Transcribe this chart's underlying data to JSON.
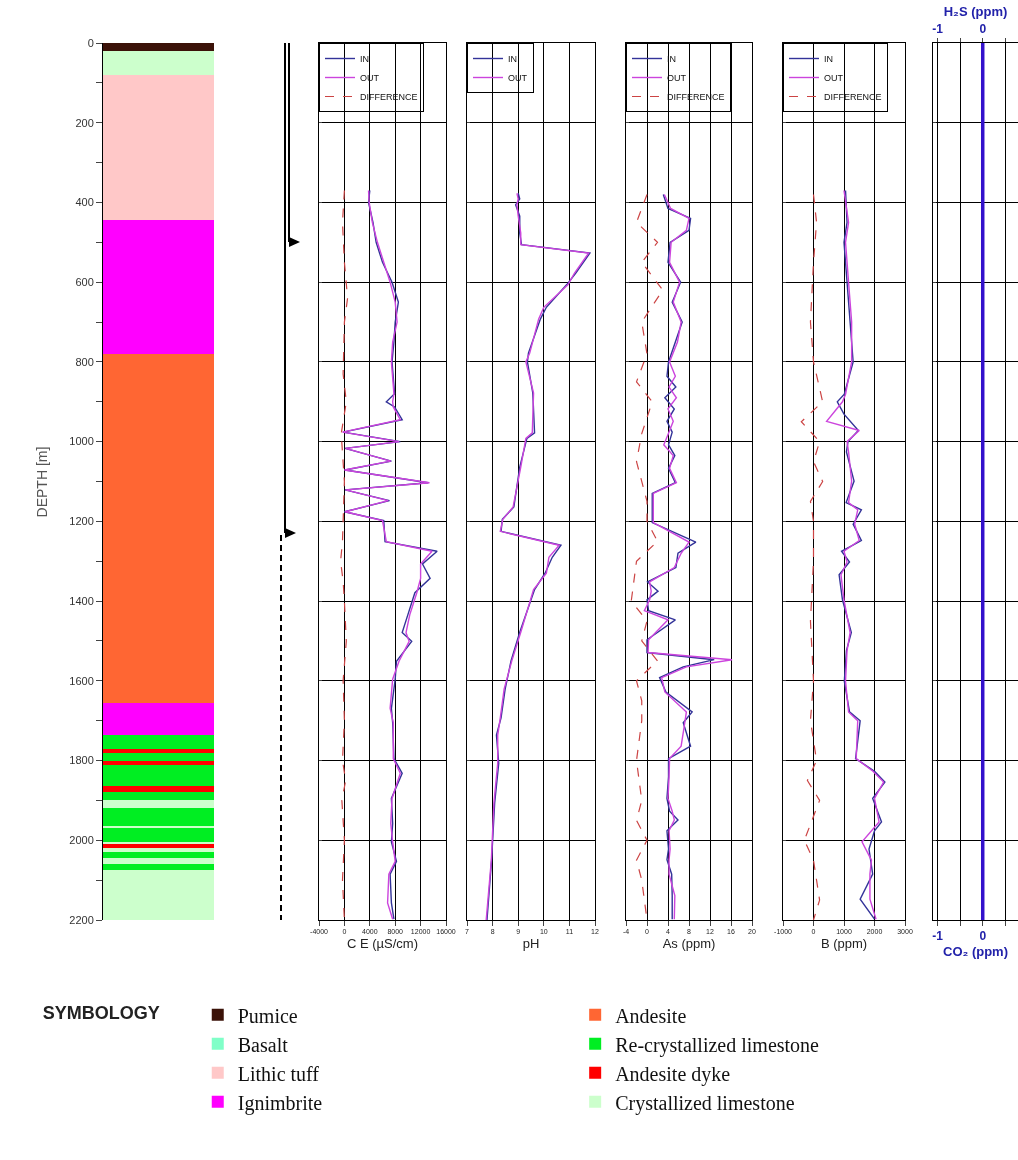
{
  "chart_data": [
    {
      "type": "bar",
      "stacked": true,
      "categories": [
        null
      ],
      "ylabel": "DEPTH [m]",
      "ylim": [
        2200,
        0
      ],
      "yticks": [
        0,
        {
          "value": 100,
          "label": null
        },
        200,
        {
          "value": 300,
          "label": null
        },
        400,
        {
          "value": 500,
          "label": null
        },
        600,
        {
          "value": 700,
          "label": null
        },
        800,
        {
          "value": 900,
          "label": null
        },
        1000,
        {
          "value": 1100,
          "label": null
        },
        1200,
        {
          "value": 1300,
          "label": null
        },
        1400,
        {
          "value": 1500,
          "label": null
        },
        1600,
        {
          "value": 1700,
          "label": null
        },
        1800,
        {
          "value": 1900,
          "label": null
        },
        2000,
        {
          "value": 2100,
          "label": null
        },
        2200
      ],
      "tick_labels": "y",
      "legend": "bottom",
      "legend_title": "SYMBOLOGY",
      "series": [
        {
          "name": "Pumice",
          "color": "#3b1208",
          "values": [
            20
          ]
        },
        {
          "name": "Basalt",
          "color": "#80ffc8",
          "values": [
            null
          ]
        },
        {
          "color": "#ccffcc",
          "values": [
            60
          ]
        },
        {
          "name": "Lithic tuff",
          "color": "#ffc8c8",
          "values": [
            365
          ]
        },
        {
          "name": "Ignimbrite",
          "color": "#ff00ff",
          "values": [
            335
          ]
        },
        {
          "name": "Andesite",
          "color": "#ff6633",
          "values": [
            875
          ]
        },
        {
          "color": "#ff00ff",
          "values": [
            80
          ]
        },
        {
          "name": "Re-crystallized limestone",
          "color": "#00ee22",
          "values": [
            35
          ]
        },
        {
          "name": "Andesite dyke",
          "color": "#ff0000",
          "values": [
            10
          ]
        },
        {
          "color": "#00ee22",
          "values": [
            20
          ]
        },
        {
          "color": "#ff0000",
          "values": [
            10
          ]
        },
        {
          "color": "#00ee22",
          "values": [
            55
          ]
        },
        {
          "color": "#ff0000",
          "values": [
            15
          ]
        },
        {
          "color": "#00ee22",
          "values": [
            20
          ]
        },
        {
          "color": "#ccffcc",
          "values": [
            20
          ]
        },
        {
          "color": "#00ee22",
          "values": [
            45
          ]
        },
        {
          "color": "#ccffcc",
          "values": [
            5
          ]
        },
        {
          "color": "#00ee22",
          "values": [
            35
          ]
        },
        {
          "color": "#ccffcc",
          "values": [
            5
          ]
        },
        {
          "color": "#ff0000",
          "values": [
            10
          ]
        },
        {
          "color": "#ccffcc",
          "values": [
            10
          ]
        },
        {
          "color": "#00ee22",
          "values": [
            15
          ]
        },
        {
          "color": "#ccffcc",
          "values": [
            15
          ]
        },
        {
          "color": "#00ee22",
          "values": [
            15
          ]
        },
        {
          "name": "Crystallized limestone",
          "color": "#ccffcc",
          "values": [
            125
          ]
        }
      ]
    },
    {
      "type": "line",
      "orientation": "horizontal",
      "xlabel": "C E (µS/cm)",
      "xlim": [
        -4000,
        16000
      ],
      "xticks": [
        -4000,
        0,
        4000,
        8000,
        12000,
        16000
      ],
      "ylim": [
        2200,
        0
      ],
      "yticks": [
        0,
        200,
        400,
        600,
        800,
        1000,
        1200,
        1400,
        1600,
        1800,
        2000,
        2200
      ],
      "tick_labels": "x",
      "grid": true,
      "legend": "top",
      "series": [
        {
          "name": "IN",
          "color": "#333399",
          "x": [
            370,
            400,
            450,
            500,
            550,
            600,
            650,
            700,
            750,
            800,
            880,
            900,
            913,
            945,
            976,
            1000,
            1017,
            1049,
            1071,
            1103,
            1121,
            1148,
            1176,
            1198,
            1251,
            1275,
            1307,
            1343,
            1379,
            1434,
            1479,
            1501,
            1551,
            1596,
            1669,
            1705,
            1795,
            1832,
            1895,
            1958,
            2004,
            2053,
            2085,
            2157,
            2198
          ],
          "values": [
            4000,
            3800,
            4500,
            5000,
            6000,
            7500,
            8500,
            8000,
            7800,
            7500,
            7900,
            6600,
            7900,
            9100,
            -200,
            8800,
            100,
            7400,
            100,
            13200,
            100,
            7100,
            0,
            6200,
            6400,
            14600,
            12300,
            13500,
            11100,
            10000,
            9100,
            10600,
            8200,
            8000,
            7400,
            7600,
            7800,
            9100,
            7400,
            7600,
            7400,
            8200,
            7200,
            7400,
            7800
          ]
        },
        {
          "name": "OUT",
          "color": "#cc44dd",
          "x": [
            370,
            400,
            450,
            500,
            550,
            600,
            650,
            700,
            750,
            800,
            880,
            900,
            913,
            945,
            976,
            1000,
            1017,
            1049,
            1071,
            1103,
            1121,
            1148,
            1176,
            1198,
            1251,
            1275,
            1307,
            1343,
            1379,
            1434,
            1479,
            1501,
            1551,
            1596,
            1669,
            1705,
            1795,
            1832,
            1895,
            1958,
            2004,
            2053,
            2085,
            2157,
            2198
          ],
          "values": [
            3800,
            3900,
            4400,
            5200,
            6200,
            7200,
            8000,
            8300,
            7600,
            7400,
            7800,
            7600,
            7700,
            8800,
            -300,
            8600,
            200,
            7300,
            0,
            13400,
            200,
            6900,
            100,
            6000,
            6600,
            13800,
            12000,
            12000,
            11400,
            10300,
            9700,
            10200,
            8600,
            7600,
            7200,
            7700,
            7700,
            8800,
            7500,
            7300,
            7600,
            8000,
            7000,
            6800,
            7600
          ]
        },
        {
          "name": "DIFFERENCE",
          "color": "#cc4444",
          "line_style": "dashed",
          "x": [
            370,
            450,
            550,
            640,
            700,
            830,
            900,
            980,
            1100,
            1250,
            1300,
            1350,
            1400,
            1500,
            1600,
            1700,
            1800,
            1850,
            1900,
            2000,
            2100,
            2200
          ],
          "values": [
            0,
            -300,
            0,
            500,
            0,
            -200,
            300,
            -500,
            0,
            -300,
            -600,
            -200,
            0,
            300,
            -200,
            0,
            -300,
            200,
            -400,
            0,
            -300,
            0
          ]
        }
      ]
    },
    {
      "type": "line",
      "orientation": "horizontal",
      "xlabel": "pH",
      "xlim": [
        7,
        12
      ],
      "xticks": [
        7,
        8,
        9,
        10,
        11,
        12
      ],
      "ylim": [
        2200,
        0
      ],
      "yticks": [
        0,
        200,
        400,
        600,
        800,
        1000,
        1200,
        1400,
        1600,
        1800,
        2000,
        2200
      ],
      "tick_labels": "x",
      "grid": true,
      "legend": "top",
      "series": [
        {
          "name": "IN",
          "color": "#333399",
          "x": [
            377,
            391,
            406,
            434,
            477,
            506,
            527,
            577,
            606,
            663,
            692,
            778,
            800,
            878,
            978,
            992,
            1064,
            1164,
            1195,
            1225,
            1260,
            1290,
            1330,
            1371,
            1478,
            1550,
            1621,
            1693,
            1736,
            1807,
            1907,
            2050,
            2200
          ],
          "values": [
            9.0,
            9.06,
            8.9,
            9.06,
            9.06,
            9.13,
            11.8,
            11.25,
            10.9,
            10.1,
            9.87,
            9.4,
            9.36,
            9.57,
            9.64,
            9.34,
            9.06,
            8.83,
            8.38,
            8.33,
            10.67,
            10.33,
            10.05,
            9.64,
            9.06,
            8.72,
            8.49,
            8.33,
            8.15,
            8.24,
            8.08,
            7.96,
            7.78
          ]
        },
        {
          "name": "OUT",
          "color": "#cc44dd",
          "x": [
            377,
            391,
            406,
            434,
            477,
            506,
            527,
            577,
            606,
            663,
            692,
            778,
            800,
            878,
            978,
            992,
            1064,
            1164,
            1195,
            1225,
            1260,
            1290,
            1330,
            1371,
            1478,
            1550,
            1621,
            1693,
            1736,
            1807,
            1907,
            2050,
            2200
          ],
          "values": [
            8.95,
            9.0,
            8.95,
            9.0,
            9.1,
            9.1,
            11.75,
            11.2,
            10.95,
            10.0,
            9.8,
            9.45,
            9.3,
            9.6,
            9.55,
            9.3,
            9.1,
            8.8,
            8.4,
            8.3,
            10.6,
            10.2,
            10.1,
            9.6,
            9.1,
            8.75,
            8.45,
            8.3,
            8.2,
            8.2,
            8.05,
            7.95,
            7.75
          ]
        }
      ]
    },
    {
      "type": "line",
      "orientation": "horizontal",
      "xlabel": "As (ppm)",
      "xlim": [
        -4,
        20
      ],
      "xticks": [
        -4,
        0,
        4,
        8,
        12,
        16,
        20
      ],
      "ylim": [
        2200,
        0
      ],
      "yticks": [
        0,
        200,
        400,
        600,
        800,
        1000,
        1200,
        1400,
        1600,
        1800,
        2000,
        2200
      ],
      "tick_labels": "x",
      "grid": true,
      "legend": "top",
      "series": [
        {
          "name": "IN",
          "color": "#333399",
          "x": [
            380,
            415,
            440,
            470,
            500,
            550,
            600,
            650,
            700,
            750,
            800,
            836,
            863,
            890,
            918,
            949,
            976,
            1008,
            1035,
            1067,
            1103,
            1130,
            1203,
            1252,
            1280,
            1316,
            1352,
            1375,
            1397,
            1424,
            1447,
            1497,
            1529,
            1547,
            1565,
            1592,
            1628,
            1678,
            1705,
            1764,
            1795,
            1841,
            1895,
            1927,
            1949,
            1976,
            2022,
            2049,
            2085,
            2139,
            2198
          ],
          "values": [
            3.1,
            4,
            8.3,
            8,
            4.4,
            4,
            6.4,
            4.8,
            6.7,
            5.4,
            4.1,
            3.8,
            5.5,
            3.4,
            5.2,
            3.8,
            4.8,
            4.1,
            5.3,
            4.1,
            5.4,
            1,
            1,
            9.3,
            5.9,
            5.5,
            0.1,
            2.1,
            0,
            0.3,
            5.4,
            0,
            0,
            12.8,
            6.9,
            2.4,
            3.6,
            8.6,
            6.9,
            8.3,
            4.1,
            4.1,
            3.8,
            4.3,
            5.9,
            3.8,
            4.1,
            3.8,
            4.7,
            4.8,
            4.8
          ]
        },
        {
          "name": "OUT",
          "color": "#cc44dd",
          "x": [
            380,
            415,
            440,
            470,
            500,
            550,
            600,
            650,
            700,
            750,
            800,
            836,
            863,
            890,
            918,
            949,
            976,
            1008,
            1035,
            1067,
            1103,
            1130,
            1203,
            1252,
            1280,
            1316,
            1352,
            1375,
            1397,
            1424,
            1447,
            1497,
            1529,
            1547,
            1565,
            1592,
            1628,
            1678,
            1705,
            1764,
            1795,
            1841,
            1895,
            1927,
            1949,
            1976,
            2022,
            2049,
            2085,
            2139,
            2198
          ],
          "values": [
            3.3,
            4.5,
            8,
            7.5,
            4.6,
            4.3,
            6.2,
            5,
            6.5,
            5.8,
            4.3,
            5.4,
            4.2,
            5.6,
            4,
            5,
            4.2,
            3.2,
            5,
            4.3,
            5.6,
            1.2,
            1.2,
            8,
            6.5,
            5.2,
            0.5,
            0.8,
            0.5,
            -0.5,
            4,
            0.3,
            0.2,
            16.2,
            7.5,
            2.8,
            3.4,
            7.5,
            7.2,
            6.5,
            4.3,
            4.2,
            4,
            4.8,
            5.2,
            4.2,
            4.4,
            4.2,
            4.2,
            5.3,
            5.2
          ]
        },
        {
          "name": "DIFFERENCE",
          "color": "#cc4444",
          "line_style": "dashed",
          "x": [
            380,
            450,
            500,
            550,
            620,
            700,
            780,
            850,
            900,
            980,
            1050,
            1150,
            1200,
            1250,
            1300,
            1400,
            1450,
            1500,
            1550,
            1600,
            1650,
            1700,
            1800,
            1900,
            1950,
            2000,
            2050,
            2100,
            2200
          ],
          "values": [
            0,
            -2,
            2,
            -1,
            3,
            -1,
            0,
            -2,
            1,
            -1,
            -2,
            0,
            0,
            2,
            -2,
            -3,
            0,
            -1,
            2,
            -2,
            -1,
            -1,
            -2,
            -1,
            -2,
            0,
            -2,
            -1,
            0
          ]
        }
      ]
    },
    {
      "type": "line",
      "orientation": "horizontal",
      "xlabel": "B (ppm)",
      "xlim": [
        -1000,
        3000
      ],
      "xticks": [
        -1000,
        0,
        1000,
        2000,
        3000
      ],
      "ylim": [
        2200,
        0
      ],
      "yticks": [
        0,
        200,
        400,
        600,
        800,
        1000,
        1200,
        1400,
        1600,
        1800,
        2000,
        2200
      ],
      "tick_labels": "x",
      "grid": true,
      "legend": "top",
      "series": [
        {
          "name": "IN",
          "color": "#333399",
          "x": [
            370,
            450,
            500,
            600,
            700,
            800,
            881,
            900,
            931,
            972,
            1000,
            1026,
            1099,
            1153,
            1171,
            1207,
            1248,
            1275,
            1302,
            1334,
            1397,
            1479,
            1524,
            1601,
            1678,
            1700,
            1795,
            1827,
            1854,
            1895,
            1954,
            1976,
            2022,
            2085,
            2148,
            2198
          ],
          "values": [
            1050,
            1100,
            1000,
            1100,
            1200,
            1300,
            1010,
            780,
            1000,
            1470,
            1130,
            1080,
            1330,
            1070,
            1570,
            1300,
            1570,
            920,
            1180,
            840,
            950,
            1240,
            1080,
            1010,
            1180,
            1530,
            1380,
            2000,
            2340,
            1940,
            2230,
            2000,
            1820,
            1940,
            1530,
            2000
          ]
        },
        {
          "name": "OUT",
          "color": "#cc44dd",
          "x": [
            370,
            450,
            500,
            600,
            700,
            800,
            881,
            900,
            949,
            972,
            1000,
            1026,
            1099,
            1153,
            1171,
            1207,
            1248,
            1275,
            1302,
            1334,
            1397,
            1479,
            1524,
            1601,
            1678,
            1700,
            1795,
            1827,
            1854,
            1895,
            1954,
            2004,
            2050,
            2085,
            2148,
            2198
          ],
          "values": [
            1000,
            1150,
            1050,
            1150,
            1250,
            1250,
            1050,
            950,
            430,
            1500,
            1100,
            1150,
            1250,
            1150,
            1450,
            1350,
            1500,
            1000,
            1100,
            900,
            1000,
            1200,
            1100,
            1050,
            1150,
            1450,
            1400,
            1950,
            2300,
            2000,
            2150,
            1590,
            1900,
            1850,
            1850,
            2050
          ]
        },
        {
          "name": "DIFFERENCE",
          "color": "#cc4444",
          "line_style": "dashed",
          "x": [
            380,
            450,
            550,
            700,
            800,
            900,
            950,
            1000,
            1050,
            1100,
            1150,
            1200,
            1300,
            1450,
            1600,
            1700,
            1800,
            1850,
            1900,
            2000,
            2050,
            2150,
            2200
          ],
          "values": [
            0,
            100,
            0,
            -100,
            0,
            300,
            -400,
            200,
            0,
            300,
            -100,
            0,
            0,
            -100,
            0,
            -100,
            100,
            -200,
            200,
            -300,
            0,
            200,
            0
          ]
        }
      ]
    },
    {
      "type": "line",
      "orientation": "horizontal",
      "xlabel": "CO₂ (ppm)",
      "xlim": [
        -1.1,
        0.78
      ],
      "xticks": [
        -1,
        {
          "value": -0.5,
          "label": null
        },
        0,
        {
          "value": 0.5,
          "label": null
        }
      ],
      "x2label": "H₂S (ppm)",
      "x2lim": [
        -1.1,
        0.78
      ],
      "x2ticks": [
        -1,
        {
          "value": -0.5,
          "label": null
        },
        0,
        {
          "value": 0.5,
          "label": null
        }
      ],
      "ylim": [
        2200,
        0
      ],
      "yticks": [
        0,
        200,
        400,
        600,
        800,
        1000,
        1200,
        1400,
        1600,
        1800,
        2000,
        2200
      ],
      "tick_labels": "x",
      "grid": true,
      "series": [
        {
          "color": "#3311cc",
          "x": [
            0,
            2200
          ],
          "values": [
            0,
            0
          ]
        }
      ]
    }
  ]
}
